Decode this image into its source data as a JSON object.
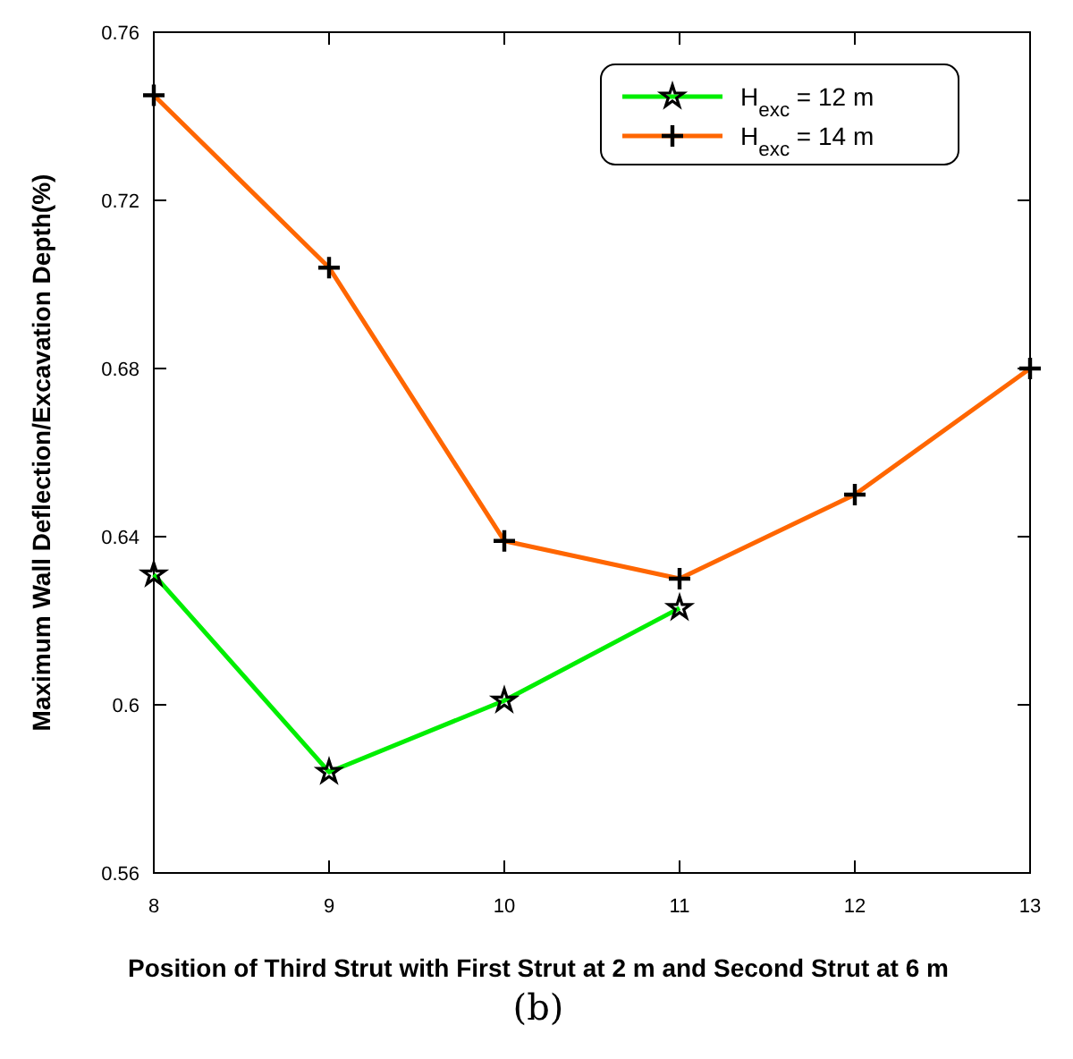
{
  "chart_data": {
    "type": "line",
    "xlabel": "Position of Third Strut with First Strut at 2 m and Second Strut at 6 m",
    "ylabel": "Maximum Wall Deflection/Excavation Depth(%)",
    "x": [
      8,
      9,
      10,
      11,
      12,
      13
    ],
    "series": [
      {
        "name": "H$_{exc}$ = 12 m",
        "color": "#00ee00",
        "marker": "star",
        "values": [
          0.631,
          0.584,
          0.601,
          0.623,
          null,
          null
        ]
      },
      {
        "name": "H$_{exc}$ = 14 m",
        "color": "#ff6600",
        "marker": "cross",
        "values": [
          0.745,
          0.704,
          0.639,
          0.63,
          0.65,
          0.68
        ]
      }
    ],
    "xlim": [
      8,
      13
    ],
    "xticks": [
      8,
      9,
      10,
      11,
      12,
      13
    ],
    "ylim": [
      0.56,
      0.76
    ],
    "yticks": [
      0.56,
      0.6,
      0.64,
      0.68,
      0.72,
      0.76
    ],
    "grid": false,
    "legend": "top right",
    "annotations": [
      "(b)"
    ]
  }
}
